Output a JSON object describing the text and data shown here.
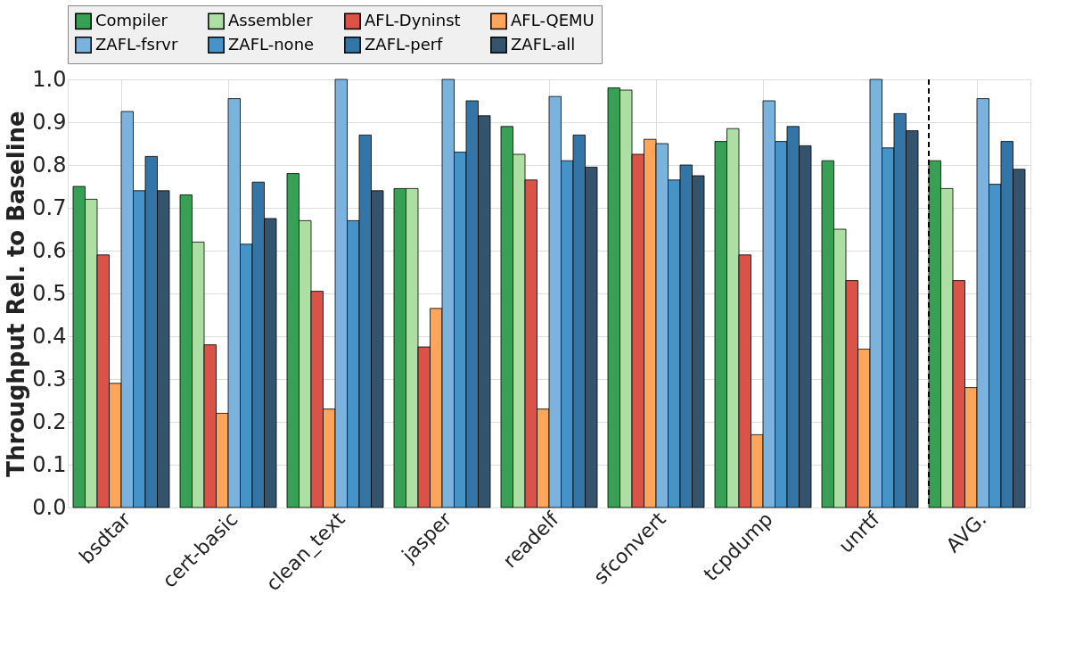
{
  "chart_data": {
    "type": "bar",
    "ylabel": "Throughput Rel. to Baseline",
    "categories": [
      "bsdtar",
      "cert-basic",
      "clean_text",
      "jasper",
      "readelf",
      "sfconvert",
      "tcpdump",
      "unrtf",
      "AVG."
    ],
    "series": [
      {
        "name": "Compiler",
        "color": "#38a055",
        "values": [
          0.75,
          0.73,
          0.78,
          0.745,
          0.89,
          0.98,
          0.855,
          0.81,
          0.81
        ]
      },
      {
        "name": "Assembler",
        "color": "#addfa4",
        "values": [
          0.72,
          0.62,
          0.67,
          0.745,
          0.825,
          0.975,
          0.885,
          0.65,
          0.745
        ]
      },
      {
        "name": "AFL-Dyninst",
        "color": "#db5249",
        "values": [
          0.59,
          0.38,
          0.505,
          0.375,
          0.765,
          0.825,
          0.59,
          0.53,
          0.53
        ]
      },
      {
        "name": "AFL-QEMU",
        "color": "#fda55a",
        "values": [
          0.29,
          0.22,
          0.23,
          0.465,
          0.23,
          0.86,
          0.17,
          0.37,
          0.28
        ]
      },
      {
        "name": "ZAFL-fsrvr",
        "color": "#7ab3de",
        "values": [
          0.925,
          0.955,
          1.0,
          1.0,
          0.96,
          0.85,
          0.95,
          1.0,
          0.955
        ]
      },
      {
        "name": "ZAFL-none",
        "color": "#4693c9",
        "values": [
          0.74,
          0.615,
          0.67,
          0.83,
          0.81,
          0.765,
          0.855,
          0.84,
          0.755
        ]
      },
      {
        "name": "ZAFL-perf",
        "color": "#3475a7",
        "values": [
          0.82,
          0.76,
          0.87,
          0.95,
          0.87,
          0.8,
          0.89,
          0.92,
          0.855
        ]
      },
      {
        "name": "ZAFL-all",
        "color": "#34536c",
        "values": [
          0.74,
          0.675,
          0.74,
          0.915,
          0.795,
          0.775,
          0.845,
          0.88,
          0.79
        ]
      }
    ],
    "ylim": [
      0,
      1.0
    ],
    "yticks": [
      {
        "value": 0,
        "label": "0.0"
      },
      0.1,
      0.2,
      0.3,
      0.4,
      0.5,
      0.6,
      0.7,
      0.8,
      0.9,
      {
        "value": 1,
        "label": "1.0"
      }
    ],
    "ref_lines": [
      {
        "axis": "x",
        "value": "AVG.",
        "line_style": "dashed",
        "color": "#000000"
      }
    ],
    "grid": true,
    "legend": "top"
  }
}
